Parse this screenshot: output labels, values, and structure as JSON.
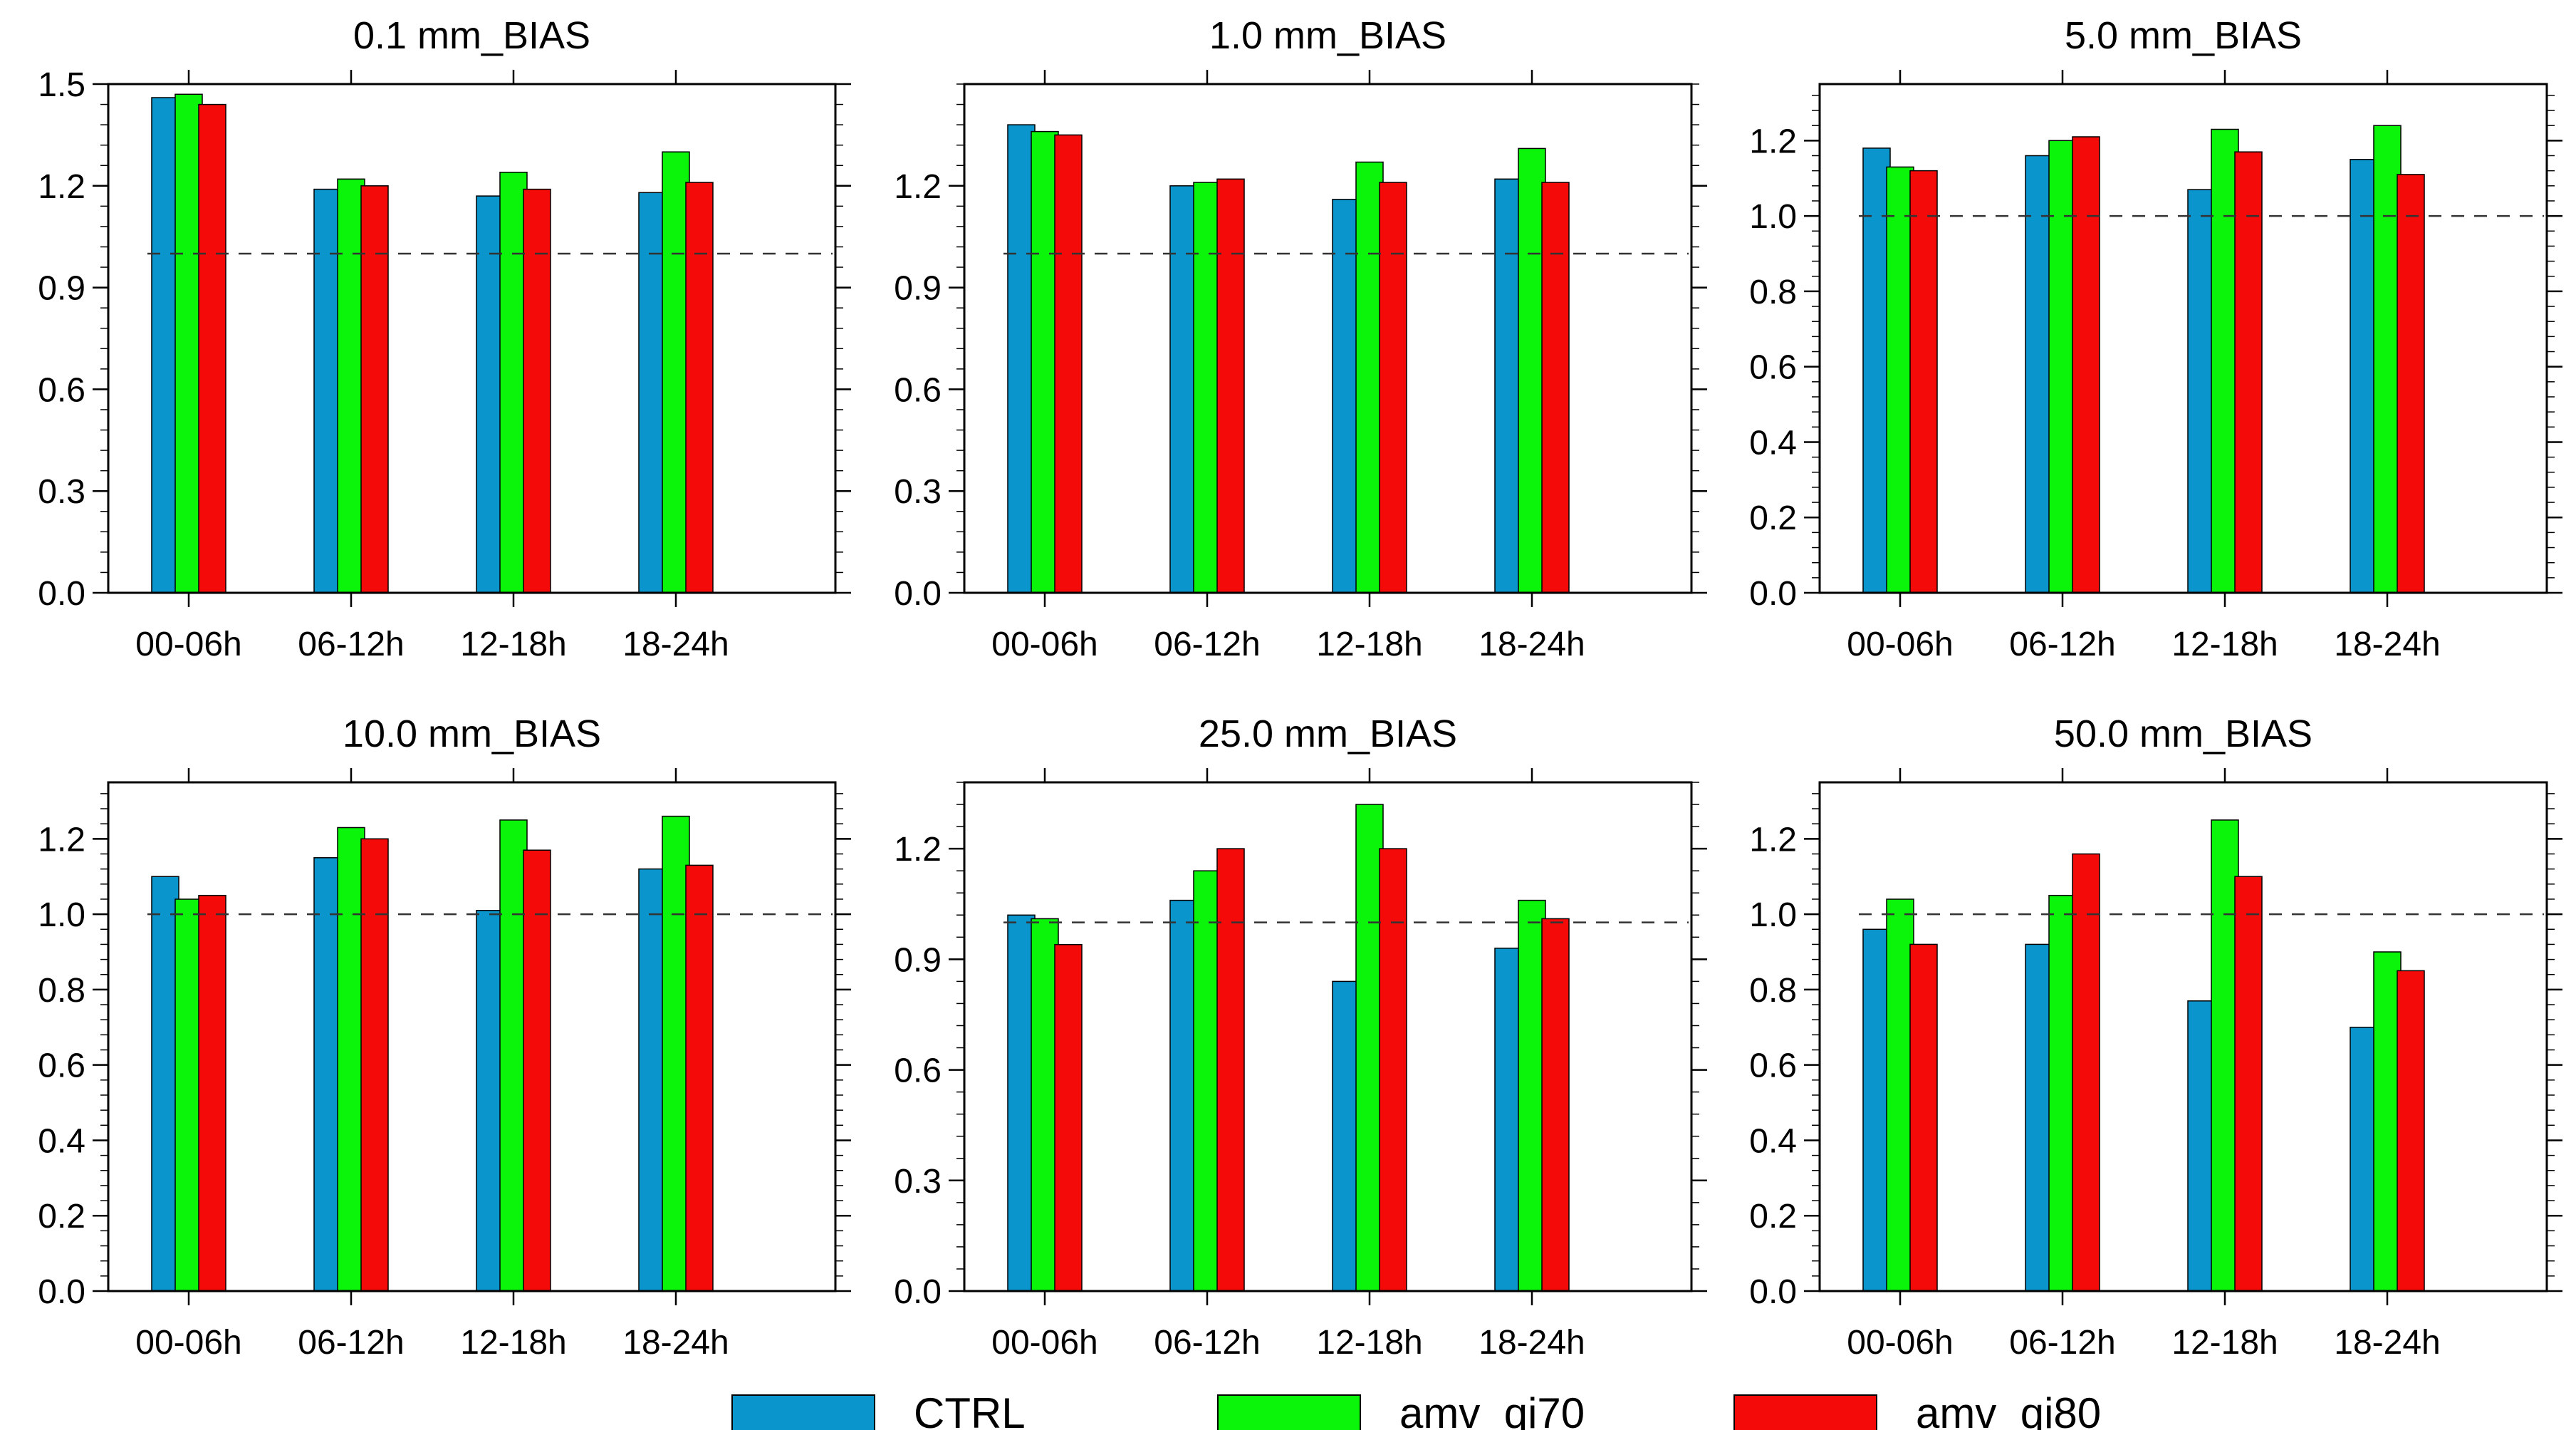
{
  "chart_data": [
    {
      "type": "bar",
      "title": "0.1 mm_BIAS",
      "categories": [
        "00-06h",
        "06-12h",
        "12-18h",
        "18-24h"
      ],
      "series": [
        {
          "name": "CTRL",
          "values": [
            1.46,
            1.19,
            1.17,
            1.18
          ]
        },
        {
          "name": "amv_qi70",
          "values": [
            1.47,
            1.22,
            1.24,
            1.3
          ]
        },
        {
          "name": "amv_qi80",
          "values": [
            1.44,
            1.2,
            1.19,
            1.21
          ]
        }
      ],
      "ylim": [
        0,
        1.5
      ],
      "yticks": [
        0.0,
        0.3,
        0.6,
        0.9,
        1.2,
        1.5
      ],
      "ytick_labels": [
        "0.0",
        "0.3",
        "0.6",
        "0.9",
        "1.2",
        "1.5"
      ],
      "reference_line": 1.0
    },
    {
      "type": "bar",
      "title": "1.0 mm_BIAS",
      "categories": [
        "00-06h",
        "06-12h",
        "12-18h",
        "18-24h"
      ],
      "series": [
        {
          "name": "CTRL",
          "values": [
            1.38,
            1.2,
            1.16,
            1.22
          ]
        },
        {
          "name": "amv_qi70",
          "values": [
            1.36,
            1.21,
            1.27,
            1.31
          ]
        },
        {
          "name": "amv_qi80",
          "values": [
            1.35,
            1.22,
            1.21,
            1.21
          ]
        }
      ],
      "ylim": [
        0,
        1.5
      ],
      "yticks": [
        0.0,
        0.3,
        0.6,
        0.9,
        1.2
      ],
      "ytick_labels": [
        "0.0",
        "0.3",
        "0.6",
        "0.9",
        "1.2"
      ],
      "reference_line": 1.0
    },
    {
      "type": "bar",
      "title": "5.0 mm_BIAS",
      "categories": [
        "00-06h",
        "06-12h",
        "12-18h",
        "18-24h"
      ],
      "series": [
        {
          "name": "CTRL",
          "values": [
            1.18,
            1.16,
            1.07,
            1.15
          ]
        },
        {
          "name": "amv_qi70",
          "values": [
            1.13,
            1.2,
            1.23,
            1.24
          ]
        },
        {
          "name": "amv_qi80",
          "values": [
            1.12,
            1.21,
            1.17,
            1.11
          ]
        }
      ],
      "ylim": [
        0,
        1.35
      ],
      "yticks": [
        0.0,
        0.2,
        0.4,
        0.6,
        0.8,
        1.0,
        1.2
      ],
      "ytick_labels": [
        "0.0",
        "0.2",
        "0.4",
        "0.6",
        "0.8",
        "1.0",
        "1.2"
      ],
      "reference_line": 1.0
    },
    {
      "type": "bar",
      "title": "10.0 mm_BIAS",
      "categories": [
        "00-06h",
        "06-12h",
        "12-18h",
        "18-24h"
      ],
      "series": [
        {
          "name": "CTRL",
          "values": [
            1.1,
            1.15,
            1.01,
            1.12
          ]
        },
        {
          "name": "amv_qi70",
          "values": [
            1.04,
            1.23,
            1.25,
            1.26
          ]
        },
        {
          "name": "amv_qi80",
          "values": [
            1.05,
            1.2,
            1.17,
            1.13
          ]
        }
      ],
      "ylim": [
        0,
        1.35
      ],
      "yticks": [
        0.0,
        0.2,
        0.4,
        0.6,
        0.8,
        1.0,
        1.2
      ],
      "ytick_labels": [
        "0.0",
        "0.2",
        "0.4",
        "0.6",
        "0.8",
        "1.0",
        "1.2"
      ],
      "reference_line": 1.0
    },
    {
      "type": "bar",
      "title": "25.0 mm_BIAS",
      "categories": [
        "00-06h",
        "06-12h",
        "12-18h",
        "18-24h"
      ],
      "series": [
        {
          "name": "CTRL",
          "values": [
            1.02,
            1.06,
            0.84,
            0.93
          ]
        },
        {
          "name": "amv_qi70",
          "values": [
            1.01,
            1.14,
            1.32,
            1.06
          ]
        },
        {
          "name": "amv_qi80",
          "values": [
            0.94,
            1.2,
            1.2,
            1.01
          ]
        }
      ],
      "ylim": [
        0,
        1.38
      ],
      "yticks": [
        0.0,
        0.3,
        0.6,
        0.9,
        1.2
      ],
      "ytick_labels": [
        "0.0",
        "0.3",
        "0.6",
        "0.9",
        "1.2"
      ],
      "reference_line": 1.0
    },
    {
      "type": "bar",
      "title": "50.0 mm_BIAS",
      "categories": [
        "00-06h",
        "06-12h",
        "12-18h",
        "18-24h"
      ],
      "series": [
        {
          "name": "CTRL",
          "values": [
            0.96,
            0.92,
            0.77,
            0.7
          ]
        },
        {
          "name": "amv_qi70",
          "values": [
            1.04,
            1.05,
            1.25,
            0.9
          ]
        },
        {
          "name": "amv_qi80",
          "values": [
            0.92,
            1.16,
            1.1,
            0.85
          ]
        }
      ],
      "ylim": [
        0,
        1.35
      ],
      "yticks": [
        0.0,
        0.2,
        0.4,
        0.6,
        0.8,
        1.0,
        1.2
      ],
      "ytick_labels": [
        "0.0",
        "0.2",
        "0.4",
        "0.6",
        "0.8",
        "1.0",
        "1.2"
      ],
      "reference_line": 1.0
    }
  ],
  "legend": [
    {
      "name": "CTRL",
      "color": "#0a96cd"
    },
    {
      "name": "amv_qi70",
      "color": "#0af50a"
    },
    {
      "name": "amv_qi80",
      "color": "#f50a0a"
    }
  ]
}
